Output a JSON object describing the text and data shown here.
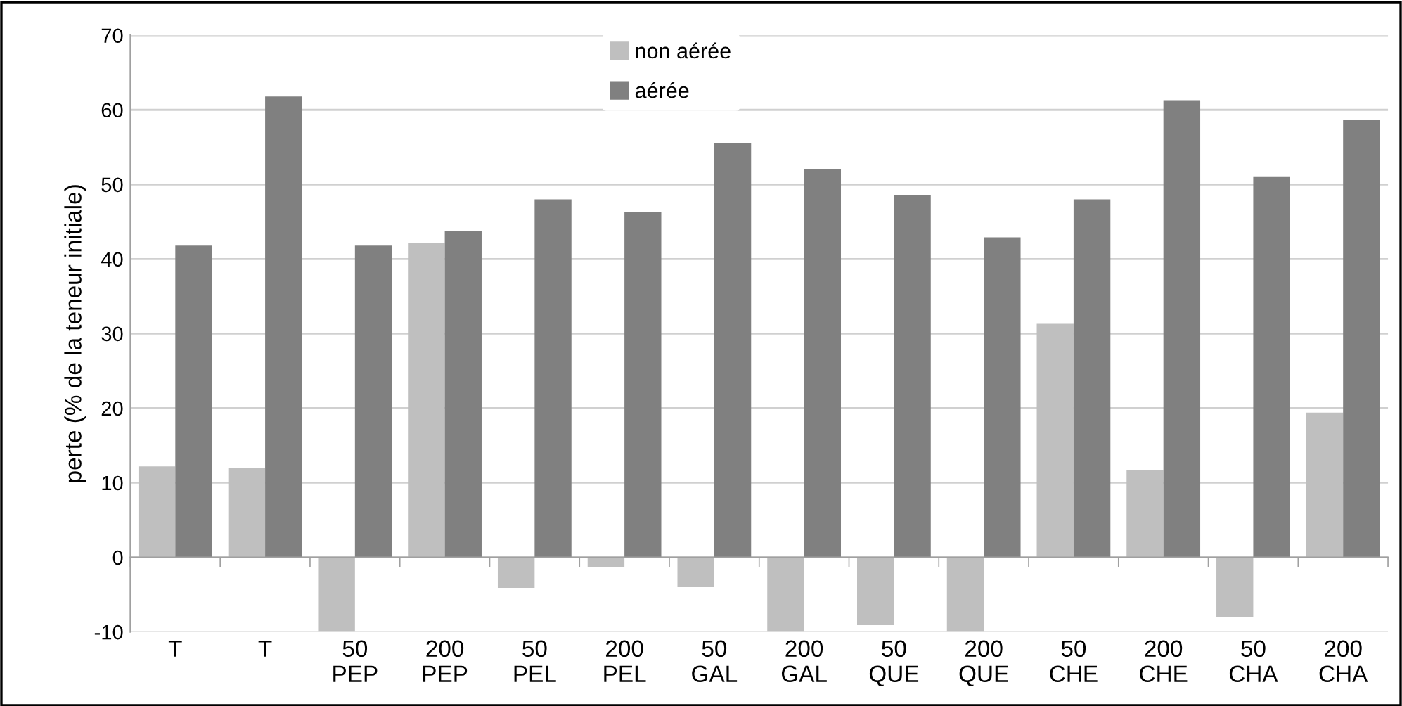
{
  "chart_data": {
    "type": "bar",
    "ylabel": "perte (% de la teneur initiale)",
    "categories": [
      "T",
      "T",
      "50\nPEP",
      "200\nPEP",
      "50\nPEL",
      "200\nPEL",
      "50\nGAL",
      "200\nGAL",
      "50\nQUE",
      "200\nQUE",
      "50\nCHE",
      "200\nCHE",
      "50\nCHA",
      "200\nCHA"
    ],
    "series": [
      {
        "name": "non aérée",
        "color": "#bfbfbf",
        "values": [
          12.2,
          12.0,
          -10,
          42.1,
          -4.1,
          -1.3,
          -4.0,
          -10,
          -9.1,
          -10,
          31.3,
          11.7,
          -8.0,
          19.4
        ]
      },
      {
        "name": "aérée",
        "color": "#808080",
        "values": [
          41.8,
          61.8,
          41.8,
          43.7,
          48.0,
          46.3,
          55.5,
          52.0,
          48.6,
          42.9,
          48.0,
          61.3,
          51.1,
          58.6
        ]
      }
    ],
    "ylim": [
      -10,
      70
    ],
    "yticks": [
      -10,
      0,
      10,
      20,
      30,
      40,
      50,
      60,
      70
    ],
    "grid": "y",
    "legend": "top"
  }
}
